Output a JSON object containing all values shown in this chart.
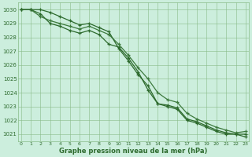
{
  "x": [
    0,
    1,
    2,
    3,
    4,
    5,
    6,
    7,
    8,
    9,
    10,
    11,
    12,
    13,
    14,
    15,
    16,
    17,
    18,
    19,
    20,
    21,
    22,
    23
  ],
  "line1": [
    1030.0,
    1030.0,
    1029.7,
    1029.0,
    1028.8,
    1028.5,
    1028.3,
    1028.5,
    1028.2,
    1027.5,
    1027.3,
    1026.5,
    1025.5,
    1024.2,
    1023.2,
    1023.0,
    1022.8,
    1022.0,
    1021.8,
    1021.5,
    1021.2,
    1021.0,
    1021.0,
    1020.8
  ],
  "line2": [
    1030.0,
    1030.0,
    1029.5,
    1029.2,
    1029.0,
    1028.8,
    1028.6,
    1028.8,
    1028.5,
    1028.2,
    1027.5,
    1026.7,
    1025.8,
    1025.0,
    1024.0,
    1023.5,
    1023.3,
    1022.5,
    1022.1,
    1021.8,
    1021.5,
    1021.3,
    1021.1,
    1021.2
  ],
  "line3": [
    1030.0,
    1030.0,
    1030.0,
    1029.8,
    1029.5,
    1029.2,
    1028.9,
    1029.0,
    1028.7,
    1028.4,
    1027.2,
    1026.3,
    1025.3,
    1024.5,
    1023.2,
    1023.1,
    1022.9,
    1022.1,
    1021.9,
    1021.6,
    1021.3,
    1021.1,
    1021.0,
    1021.0
  ],
  "line_color_dark": "#2d6a2d",
  "line_color_mid": "#3d7a3d",
  "bg_color": "#cceedd",
  "grid_color": "#88bb88",
  "text_color": "#2d6a2d",
  "xlabel": "Graphe pression niveau de la mer (hPa)",
  "ylim_min": 1020.5,
  "ylim_max": 1030.5,
  "ytick_vals": [
    1021,
    1022,
    1023,
    1024,
    1025,
    1026,
    1027,
    1028,
    1029,
    1030
  ],
  "xtick_vals": [
    0,
    1,
    2,
    3,
    4,
    5,
    6,
    7,
    8,
    9,
    10,
    11,
    12,
    13,
    14,
    15,
    16,
    17,
    18,
    19,
    20,
    21,
    22,
    23
  ]
}
